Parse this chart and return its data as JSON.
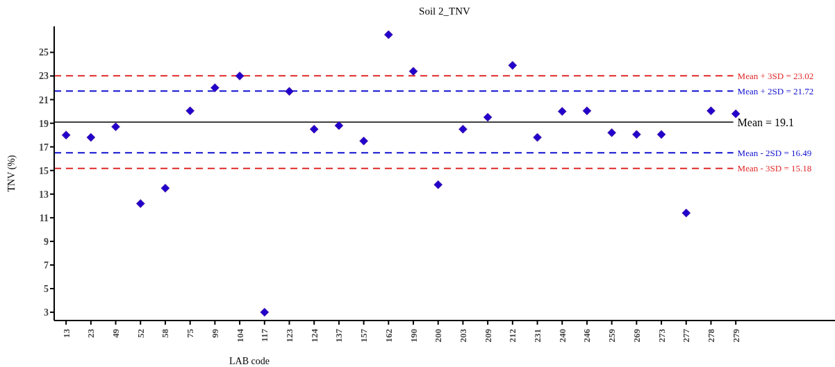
{
  "chart_data": {
    "type": "scatter",
    "title": "Soil 2_TNV",
    "xlabel": "LAB code",
    "ylabel": "TNV (%)",
    "categories": [
      "13",
      "23",
      "49",
      "52",
      "58",
      "75",
      "99",
      "104",
      "117",
      "123",
      "124",
      "137",
      "157",
      "162",
      "190",
      "200",
      "203",
      "209",
      "212",
      "231",
      "240",
      "246",
      "259",
      "269",
      "273",
      "277",
      "278",
      "279"
    ],
    "series": [
      {
        "color": "#2200cc",
        "values": [
          18.0,
          17.8,
          18.7,
          12.2,
          13.5,
          20.05,
          22.0,
          23.0,
          3.0,
          21.7,
          18.5,
          18.8,
          17.5,
          26.5,
          23.4,
          13.8,
          18.5,
          19.5,
          23.9,
          17.8,
          20.0,
          20.05,
          18.2,
          18.05,
          18.05,
          11.4,
          20.05,
          19.8
        ]
      }
    ],
    "marker": "diamond",
    "ylim": [
      2.3,
      27.2
    ],
    "yticks": [
      3,
      5,
      7,
      9,
      11,
      13,
      15,
      17,
      19,
      21,
      23,
      25
    ],
    "grid": false,
    "legend": false,
    "ref_lines": [
      {
        "axis": "y",
        "value": 23.02,
        "label": "Mean + 3SD = 23.02",
        "color": "#e02828",
        "line_style": "dashed"
      },
      {
        "axis": "y",
        "value": 21.72,
        "label": "Mean + 2SD = 21.72",
        "color": "#1010d0",
        "line_style": "dashed"
      },
      {
        "axis": "y",
        "value": 19.1,
        "label": "Mean = 19.1",
        "color": "#000000",
        "line_style": "solid"
      },
      {
        "axis": "y",
        "value": 16.49,
        "label": "Mean - 2SD = 16.49",
        "color": "#1010d0",
        "line_style": "dashed"
      },
      {
        "axis": "y",
        "value": 15.18,
        "label": "Mean - 3SD = 15.18",
        "color": "#e02828",
        "line_style": "dashed"
      }
    ]
  }
}
